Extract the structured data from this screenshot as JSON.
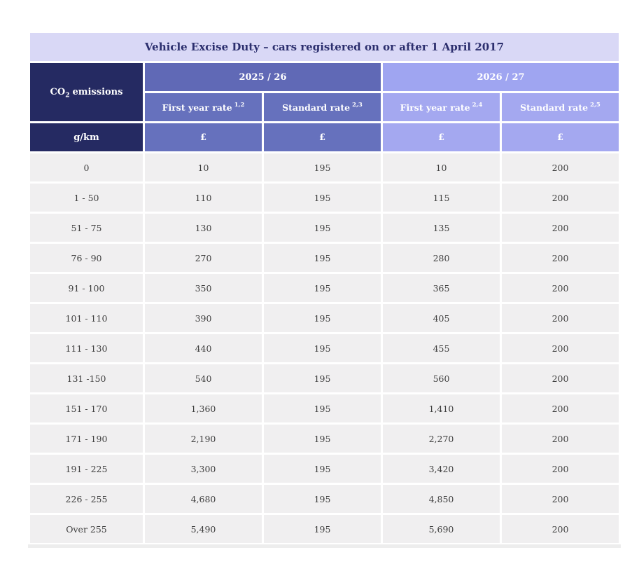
{
  "chart_data": {
    "type": "table",
    "title": "Vehicle Excise Duty – cars registered on or after 1 April 2017",
    "header": {
      "emissions": {
        "prefix": "CO",
        "sub": "2",
        "suffix": "emissions"
      },
      "year_groups": [
        {
          "label": "2025 / 26"
        },
        {
          "label": "2026 / 27"
        }
      ],
      "subheaders": [
        {
          "label": "First year rate",
          "sup": "1,2"
        },
        {
          "label": "Standard rate",
          "sup": "2,3"
        },
        {
          "label": "First year rate",
          "sup": "2,4"
        },
        {
          "label": "Standard rate",
          "sup": "2,5"
        }
      ],
      "units": [
        "g/km",
        "£",
        "£",
        "£",
        "£"
      ]
    },
    "rows": [
      [
        "0",
        "10",
        "195",
        "10",
        "200"
      ],
      [
        "1 - 50",
        "110",
        "195",
        "115",
        "200"
      ],
      [
        "51 - 75",
        "130",
        "195",
        "135",
        "200"
      ],
      [
        "76 - 90",
        "270",
        "195",
        "280",
        "200"
      ],
      [
        "91 - 100",
        "350",
        "195",
        "365",
        "200"
      ],
      [
        "101 - 110",
        "390",
        "195",
        "405",
        "200"
      ],
      [
        "111 - 130",
        "440",
        "195",
        "455",
        "200"
      ],
      [
        "131 -150",
        "540",
        "195",
        "560",
        "200"
      ],
      [
        "151 - 170",
        "1,360",
        "195",
        "1,410",
        "200"
      ],
      [
        "171 - 190",
        "2,190",
        "195",
        "2,270",
        "200"
      ],
      [
        "191 - 225",
        "3,300",
        "195",
        "3,420",
        "200"
      ],
      [
        "226 - 255",
        "4,680",
        "195",
        "4,850",
        "200"
      ],
      [
        "Over 255",
        "5,490",
        "195",
        "5,690",
        "200"
      ]
    ]
  },
  "colors": {
    "title_bg": "#d9d8f6",
    "title_text": "#2c2f6e",
    "emissions_header_bg": "#252a62",
    "group_2025_band_bg": "#6069b6",
    "group_2025_subheader_bg": "#6671bd",
    "group_2026_band_bg": "#9fa5f1",
    "group_2026_subheader_bg": "#a4a8f0",
    "data_row_bg": "#f0eff0",
    "data_text": "#3e3e3e",
    "separator": "#ffffff"
  }
}
